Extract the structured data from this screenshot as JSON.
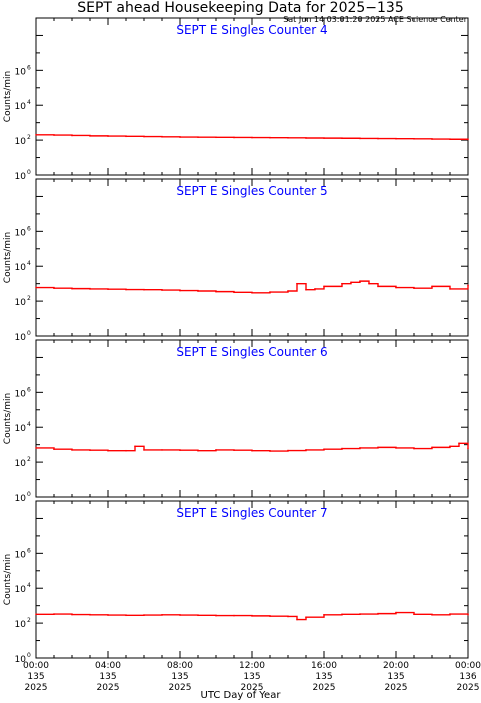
{
  "page": {
    "title": "SEPT ahead Housekeeping Data for 2025−135",
    "timestamp": "Sat Jun 14 03:01:20 2025 ACE Science Center",
    "xlabel": "UTC Day of Year"
  },
  "colors": {
    "series": "#ff0000",
    "panel_title": "#0000ff",
    "axes": "#000000"
  },
  "chart_data": [
    {
      "type": "line",
      "title": "SEPT E Singles Counter 4",
      "ylabel": "Counts/min",
      "yscale": "log",
      "ylim": [
        1,
        1000000000
      ],
      "yticks": [
        {
          "exp": 0,
          "label": "0"
        },
        {
          "exp": 2,
          "label": "2"
        },
        {
          "exp": 4,
          "label": "4"
        },
        {
          "exp": 6,
          "label": "6"
        }
      ],
      "xlim": [
        0,
        24
      ],
      "xticks": [
        {
          "hour": 0,
          "lines": [
            "00:00",
            "135",
            "2025"
          ]
        },
        {
          "hour": 4,
          "lines": [
            "04:00",
            "135",
            "2025"
          ]
        },
        {
          "hour": 8,
          "lines": [
            "08:00",
            "135",
            "2025"
          ]
        },
        {
          "hour": 12,
          "lines": [
            "12:00",
            "135",
            "2025"
          ]
        },
        {
          "hour": 16,
          "lines": [
            "16:00",
            "135",
            "2025"
          ]
        },
        {
          "hour": 20,
          "lines": [
            "20:00",
            "135",
            "2025"
          ]
        },
        {
          "hour": 24,
          "lines": [
            "00:00",
            "136",
            "2025"
          ]
        }
      ],
      "series": [
        {
          "x": [
            0,
            1,
            2,
            3,
            4,
            5,
            6,
            7,
            8,
            9,
            10,
            11,
            12,
            13,
            14,
            15,
            16,
            17,
            18,
            19,
            20,
            21,
            22,
            23,
            24
          ],
          "y": [
            200,
            195,
            185,
            175,
            170,
            165,
            160,
            155,
            150,
            148,
            145,
            142,
            140,
            138,
            135,
            132,
            130,
            128,
            125,
            122,
            120,
            118,
            115,
            112,
            110
          ]
        }
      ]
    },
    {
      "type": "line",
      "title": "SEPT E Singles Counter 5",
      "ylabel": "Counts/min",
      "yscale": "log",
      "ylim": [
        1,
        1000000000
      ],
      "yticks": [
        {
          "exp": 0,
          "label": "0"
        },
        {
          "exp": 2,
          "label": "2"
        },
        {
          "exp": 4,
          "label": "4"
        },
        {
          "exp": 6,
          "label": "6"
        }
      ],
      "xlim": [
        0,
        24
      ],
      "xticks": [
        {
          "hour": 0,
          "lines": [
            "00:00",
            "135",
            "2025"
          ]
        },
        {
          "hour": 4,
          "lines": [
            "04:00",
            "135",
            "2025"
          ]
        },
        {
          "hour": 8,
          "lines": [
            "08:00",
            "135",
            "2025"
          ]
        },
        {
          "hour": 12,
          "lines": [
            "12:00",
            "135",
            "2025"
          ]
        },
        {
          "hour": 16,
          "lines": [
            "16:00",
            "135",
            "2025"
          ]
        },
        {
          "hour": 20,
          "lines": [
            "20:00",
            "135",
            "2025"
          ]
        },
        {
          "hour": 24,
          "lines": [
            "00:00",
            "136",
            "2025"
          ]
        }
      ],
      "series": [
        {
          "x": [
            0,
            1,
            2,
            3,
            4,
            5,
            6,
            7,
            8,
            9,
            10,
            11,
            12,
            13,
            14,
            14.5,
            15,
            15.5,
            16,
            17,
            17.5,
            18,
            18.5,
            19,
            20,
            21,
            22,
            23,
            24
          ],
          "y": [
            600,
            550,
            520,
            500,
            480,
            460,
            450,
            430,
            400,
            380,
            350,
            320,
            300,
            330,
            380,
            1000,
            450,
            500,
            700,
            1000,
            1200,
            1400,
            1000,
            700,
            600,
            550,
            700,
            500,
            800
          ]
        }
      ]
    },
    {
      "type": "line",
      "title": "SEPT E Singles Counter 6",
      "ylabel": "Counts/min",
      "yscale": "log",
      "ylim": [
        1,
        1000000000
      ],
      "yticks": [
        {
          "exp": 0,
          "label": "0"
        },
        {
          "exp": 2,
          "label": "2"
        },
        {
          "exp": 4,
          "label": "4"
        },
        {
          "exp": 6,
          "label": "6"
        }
      ],
      "xlim": [
        0,
        24
      ],
      "xticks": [
        {
          "hour": 0,
          "lines": [
            "00:00",
            "135",
            "2025"
          ]
        },
        {
          "hour": 4,
          "lines": [
            "04:00",
            "135",
            "2025"
          ]
        },
        {
          "hour": 8,
          "lines": [
            "08:00",
            "135",
            "2025"
          ]
        },
        {
          "hour": 12,
          "lines": [
            "12:00",
            "135",
            "2025"
          ]
        },
        {
          "hour": 16,
          "lines": [
            "16:00",
            "135",
            "2025"
          ]
        },
        {
          "hour": 20,
          "lines": [
            "20:00",
            "135",
            "2025"
          ]
        },
        {
          "hour": 24,
          "lines": [
            "00:00",
            "136",
            "2025"
          ]
        }
      ],
      "series": [
        {
          "x": [
            0,
            1,
            2,
            3,
            4,
            5,
            5.5,
            6,
            7,
            8,
            9,
            10,
            11,
            12,
            13,
            14,
            15,
            16,
            17,
            18,
            19,
            20,
            21,
            22,
            23,
            23.5,
            24
          ],
          "y": [
            650,
            550,
            500,
            480,
            450,
            450,
            800,
            500,
            500,
            480,
            450,
            500,
            480,
            450,
            430,
            460,
            500,
            550,
            600,
            650,
            700,
            650,
            600,
            700,
            800,
            1200,
            600
          ]
        }
      ]
    },
    {
      "type": "line",
      "title": "SEPT E Singles Counter 7",
      "ylabel": "Counts/min",
      "yscale": "log",
      "ylim": [
        1,
        1000000000
      ],
      "yticks": [
        {
          "exp": 0,
          "label": "0"
        },
        {
          "exp": 2,
          "label": "2"
        },
        {
          "exp": 4,
          "label": "4"
        },
        {
          "exp": 6,
          "label": "6"
        }
      ],
      "xlim": [
        0,
        24
      ],
      "xticks": [
        {
          "hour": 0,
          "lines": [
            "00:00",
            "135",
            "2025"
          ]
        },
        {
          "hour": 4,
          "lines": [
            "04:00",
            "135",
            "2025"
          ]
        },
        {
          "hour": 8,
          "lines": [
            "08:00",
            "135",
            "2025"
          ]
        },
        {
          "hour": 12,
          "lines": [
            "12:00",
            "135",
            "2025"
          ]
        },
        {
          "hour": 16,
          "lines": [
            "16:00",
            "135",
            "2025"
          ]
        },
        {
          "hour": 20,
          "lines": [
            "20:00",
            "135",
            "2025"
          ]
        },
        {
          "hour": 24,
          "lines": [
            "00:00",
            "136",
            "2025"
          ]
        }
      ],
      "series": [
        {
          "x": [
            0,
            1,
            2,
            3,
            4,
            5,
            6,
            7,
            8,
            9,
            10,
            11,
            12,
            13,
            14,
            14.5,
            15,
            16,
            17,
            18,
            19,
            20,
            21,
            22,
            23,
            24
          ],
          "y": [
            320,
            330,
            310,
            300,
            290,
            280,
            290,
            300,
            290,
            280,
            270,
            270,
            260,
            250,
            240,
            160,
            220,
            300,
            320,
            330,
            350,
            400,
            320,
            300,
            330,
            300
          ]
        }
      ]
    }
  ]
}
